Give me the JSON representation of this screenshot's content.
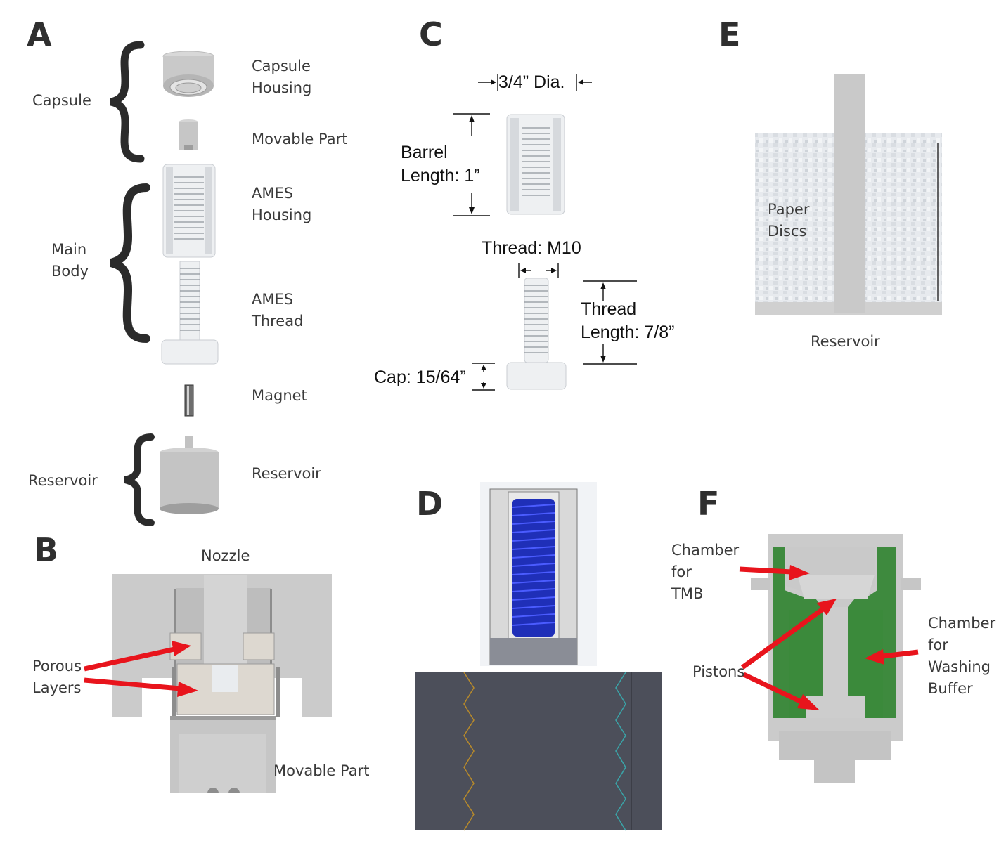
{
  "panels": {
    "a": {
      "letter": "A",
      "groups": {
        "capsule": "Capsule",
        "main_body": "Main\nBody",
        "reservoir": "Reservoir"
      },
      "parts": {
        "capsule_housing": "Capsule\nHousing",
        "movable_part": "Movable Part",
        "ames_housing": "AMES\nHousing",
        "ames_thread": "AMES\nThread",
        "magnet": "Magnet",
        "reservoir": "Reservoir"
      }
    },
    "b": {
      "letter": "B",
      "nozzle": "Nozzle",
      "porous_layers": "Porous\nLayers",
      "movable_part": "Movable Part"
    },
    "c": {
      "letter": "C",
      "diameter": "3/4” Dia.",
      "barrel_length": "Barrel\nLength: 1”",
      "thread": "Thread: M10",
      "thread_length": "Thread\nLength: 7/8”",
      "cap": "Cap: 15/64”"
    },
    "d": {
      "letter": "D"
    },
    "e": {
      "letter": "E",
      "paper_discs": "Paper\nDiscs",
      "reservoir": "Reservoir"
    },
    "f": {
      "letter": "F",
      "chamber_tmb": "Chamber\nfor\nTMB",
      "pistons": "Pistons",
      "chamber_wash": "Chamber\nfor\nWashing\nBuffer"
    }
  },
  "colors": {
    "part_gray": "#c9c9c9",
    "part_dark": "#a9a9a9",
    "arrow_red": "#e8141c",
    "green": "#3e8a3e",
    "blue_thread": "#1f2fb8",
    "d_dark": "#4c4f5a"
  }
}
